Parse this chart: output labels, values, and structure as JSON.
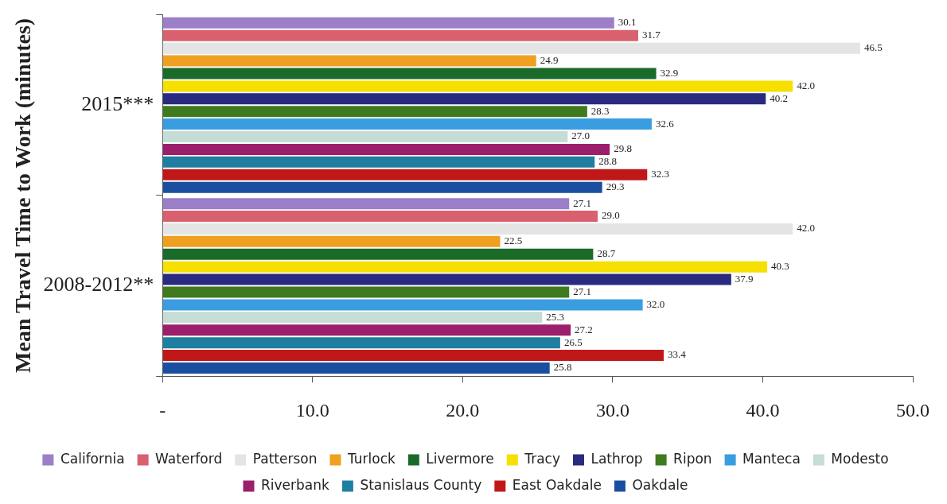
{
  "chart_data": {
    "type": "bar",
    "orientation": "horizontal",
    "ylabel": "Mean Travel Time to Work (minutes)",
    "categories": [
      "2015***",
      "2008-2012**"
    ],
    "xlim": [
      0,
      50
    ],
    "xticks": [
      {
        "value": 0,
        "label": "-"
      },
      {
        "value": 10,
        "label": "10.0"
      },
      {
        "value": 20,
        "label": "20.0"
      },
      {
        "value": 30,
        "label": "30.0"
      },
      {
        "value": 40,
        "label": "40.0"
      },
      {
        "value": 50,
        "label": "50.0"
      }
    ],
    "grid": false,
    "legend": "bottom",
    "series": [
      {
        "name": "California",
        "color": "#9b7fc8",
        "values": [
          30.1,
          27.1
        ],
        "value_labels": [
          "30.1",
          "27.1"
        ]
      },
      {
        "name": "Waterford",
        "color": "#d9606e",
        "values": [
          31.7,
          29.0
        ],
        "value_labels": [
          "31.7",
          "29.0"
        ]
      },
      {
        "name": "Patterson",
        "color": "#e4e4e4",
        "values": [
          46.5,
          42.0
        ],
        "value_labels": [
          "46.5",
          "42.0"
        ]
      },
      {
        "name": "Turlock",
        "color": "#f0a020",
        "values": [
          24.9,
          22.5
        ],
        "value_labels": [
          "24.9",
          "22.5"
        ]
      },
      {
        "name": "Livermore",
        "color": "#1a6b2a",
        "values": [
          32.9,
          28.7
        ],
        "value_labels": [
          "32.9",
          "28.7"
        ]
      },
      {
        "name": "Tracy",
        "color": "#f5e000",
        "values": [
          42.0,
          40.3
        ],
        "value_labels": [
          "42.0",
          "40.3"
        ]
      },
      {
        "name": "Lathrop",
        "color": "#2a2a80",
        "values": [
          40.2,
          37.9
        ],
        "value_labels": [
          "40.2",
          "37.9"
        ]
      },
      {
        "name": "Ripon",
        "color": "#3f7a1f",
        "values": [
          28.3,
          27.1
        ],
        "value_labels": [
          "28.3",
          "27.1"
        ]
      },
      {
        "name": "Manteca",
        "color": "#3a9de0",
        "values": [
          32.6,
          32.0
        ],
        "value_labels": [
          "32.6",
          "32.0"
        ]
      },
      {
        "name": "Modesto",
        "color": "#c5ddd5",
        "values": [
          27.0,
          25.3
        ],
        "value_labels": [
          "27.0",
          "25.3"
        ]
      },
      {
        "name": "Riverbank",
        "color": "#9b1f6a",
        "values": [
          29.8,
          27.2
        ],
        "value_labels": [
          "29.8",
          "27.2"
        ]
      },
      {
        "name": "Stanislaus County",
        "color": "#1f7fa0",
        "values": [
          28.8,
          26.5
        ],
        "value_labels": [
          "28.8",
          "26.5"
        ]
      },
      {
        "name": "East Oakdale",
        "color": "#c01818",
        "values": [
          32.3,
          33.4
        ],
        "value_labels": [
          "32.3",
          "33.4"
        ]
      },
      {
        "name": "Oakdale",
        "color": "#1a4fa0",
        "values": [
          29.3,
          25.8
        ],
        "value_labels": [
          "29.3",
          "25.8"
        ]
      }
    ]
  }
}
